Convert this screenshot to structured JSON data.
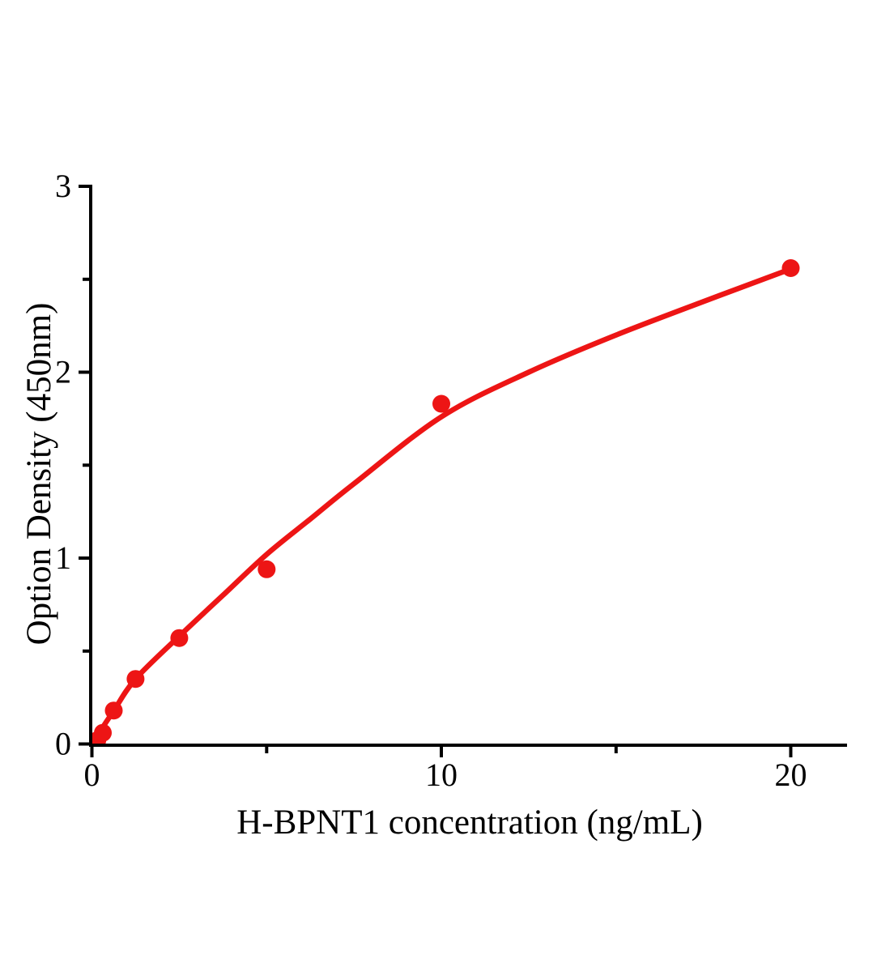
{
  "figure": {
    "background_color": "#ffffff",
    "axis_color": "#000000"
  },
  "chart_data": {
    "type": "scatter",
    "title": "",
    "xlabel": "H-BPNT1 concentration (ng/mL)",
    "ylabel": "Option Density (450nm)",
    "xlim": [
      0,
      21.6
    ],
    "ylim": [
      0,
      3
    ],
    "grid": false,
    "legend": null,
    "point_color": "#ED1515",
    "curve_color": "#ED1515",
    "x_ticks": {
      "major": [
        {
          "value": 0,
          "label": "0"
        },
        {
          "value": 10,
          "label": "10"
        },
        {
          "value": 20,
          "label": "20"
        }
      ],
      "minor": [
        5,
        15
      ]
    },
    "y_ticks": {
      "major": [
        {
          "value": 0,
          "label": "0"
        },
        {
          "value": 1,
          "label": "1"
        },
        {
          "value": 2,
          "label": "2"
        },
        {
          "value": 3,
          "label": "3"
        }
      ],
      "minor": [
        0.5,
        1.5,
        2.5
      ]
    },
    "series": [
      {
        "marker": "circle",
        "points": [
          {
            "x": 0.156,
            "y": 0.02
          },
          {
            "x": 0.3125,
            "y": 0.06
          },
          {
            "x": 0.625,
            "y": 0.18
          },
          {
            "x": 1.25,
            "y": 0.35
          },
          {
            "x": 2.5,
            "y": 0.57
          },
          {
            "x": 5,
            "y": 0.94
          },
          {
            "x": 10,
            "y": 1.83
          },
          {
            "x": 20,
            "y": 2.56
          }
        ]
      }
    ],
    "fit_curve": {
      "samples": [
        {
          "x": 0,
          "y": 0.0
        },
        {
          "x": 0.31,
          "y": 0.09
        },
        {
          "x": 0.63,
          "y": 0.18
        },
        {
          "x": 1.25,
          "y": 0.35
        },
        {
          "x": 2.5,
          "y": 0.58
        },
        {
          "x": 3.75,
          "y": 0.8
        },
        {
          "x": 5,
          "y": 1.02
        },
        {
          "x": 6.25,
          "y": 1.21
        },
        {
          "x": 7.5,
          "y": 1.4
        },
        {
          "x": 10,
          "y": 1.76
        },
        {
          "x": 12.5,
          "y": 2.0
        },
        {
          "x": 15,
          "y": 2.2
        },
        {
          "x": 17.5,
          "y": 2.38
        },
        {
          "x": 20,
          "y": 2.555
        }
      ]
    }
  }
}
